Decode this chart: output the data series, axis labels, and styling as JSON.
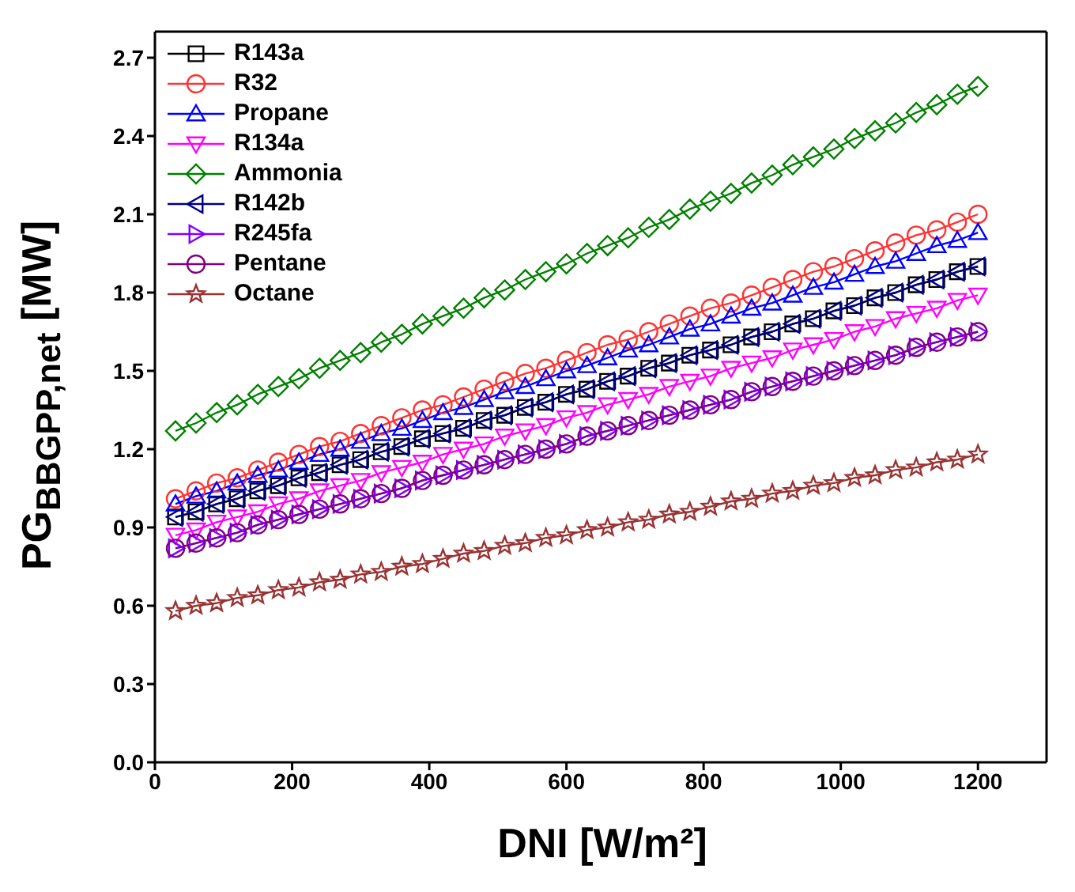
{
  "chart_data": {
    "type": "line",
    "xlabel": "DNI [W/m²]",
    "ylabel": "PG$_{BBGPP,net}$ [MW]",
    "x": [
      30,
      60,
      90,
      120,
      150,
      180,
      210,
      240,
      270,
      300,
      330,
      360,
      390,
      420,
      450,
      480,
      510,
      540,
      570,
      600,
      630,
      660,
      690,
      720,
      750,
      780,
      810,
      840,
      870,
      900,
      930,
      960,
      990,
      1020,
      1050,
      1080,
      1110,
      1140,
      1170,
      1200
    ],
    "xlim": [
      0,
      1300
    ],
    "xticks": [
      0,
      200,
      400,
      600,
      800,
      1000,
      1200
    ],
    "ylim": [
      0,
      2.8
    ],
    "yticks": [
      {
        "value": 0,
        "label": "0.0"
      },
      0.3,
      0.6,
      0.9,
      1.2,
      1.5,
      1.8,
      2.1,
      2.4,
      2.7
    ],
    "legend": "top left",
    "series": [
      {
        "name": "R143a",
        "color": "#000000",
        "marker": "square",
        "values": [
          0.94,
          0.96,
          0.99,
          1.01,
          1.04,
          1.06,
          1.09,
          1.11,
          1.14,
          1.16,
          1.19,
          1.21,
          1.24,
          1.26,
          1.28,
          1.31,
          1.33,
          1.36,
          1.38,
          1.41,
          1.43,
          1.46,
          1.48,
          1.51,
          1.53,
          1.56,
          1.58,
          1.6,
          1.63,
          1.65,
          1.68,
          1.7,
          1.73,
          1.75,
          1.78,
          1.8,
          1.83,
          1.85,
          1.88,
          1.9
        ]
      },
      {
        "name": "R32",
        "color": "#ff3333",
        "marker": "circle",
        "values": [
          1.01,
          1.04,
          1.07,
          1.09,
          1.12,
          1.15,
          1.18,
          1.21,
          1.23,
          1.26,
          1.29,
          1.32,
          1.35,
          1.37,
          1.4,
          1.43,
          1.46,
          1.49,
          1.51,
          1.54,
          1.57,
          1.6,
          1.62,
          1.65,
          1.68,
          1.71,
          1.74,
          1.76,
          1.79,
          1.82,
          1.85,
          1.88,
          1.9,
          1.93,
          1.96,
          1.99,
          2.02,
          2.04,
          2.07,
          2.1
        ]
      },
      {
        "name": "Propane",
        "color": "#0000ff",
        "marker": "triangle",
        "values": [
          0.99,
          1.02,
          1.04,
          1.07,
          1.1,
          1.12,
          1.15,
          1.18,
          1.2,
          1.23,
          1.26,
          1.28,
          1.31,
          1.34,
          1.36,
          1.39,
          1.42,
          1.44,
          1.47,
          1.5,
          1.52,
          1.55,
          1.58,
          1.6,
          1.63,
          1.66,
          1.68,
          1.71,
          1.74,
          1.76,
          1.79,
          1.82,
          1.84,
          1.87,
          1.9,
          1.92,
          1.95,
          1.98,
          2.0,
          2.03
        ]
      },
      {
        "name": "R134a",
        "color": "#ff00ff",
        "marker": "triangle-down",
        "values": [
          0.87,
          0.89,
          0.92,
          0.94,
          0.96,
          0.99,
          1.01,
          1.04,
          1.06,
          1.08,
          1.11,
          1.13,
          1.15,
          1.18,
          1.2,
          1.22,
          1.25,
          1.27,
          1.29,
          1.32,
          1.34,
          1.37,
          1.39,
          1.41,
          1.44,
          1.46,
          1.48,
          1.51,
          1.53,
          1.55,
          1.58,
          1.6,
          1.62,
          1.65,
          1.67,
          1.7,
          1.72,
          1.74,
          1.77,
          1.79
        ]
      },
      {
        "name": "Ammonia",
        "color": "#008000",
        "marker": "diamond",
        "values": [
          1.27,
          1.3,
          1.34,
          1.37,
          1.41,
          1.44,
          1.47,
          1.51,
          1.54,
          1.57,
          1.61,
          1.64,
          1.68,
          1.71,
          1.74,
          1.78,
          1.81,
          1.85,
          1.88,
          1.91,
          1.95,
          1.98,
          2.01,
          2.05,
          2.08,
          2.12,
          2.15,
          2.18,
          2.22,
          2.25,
          2.29,
          2.32,
          2.35,
          2.39,
          2.42,
          2.45,
          2.49,
          2.52,
          2.56,
          2.59
        ]
      },
      {
        "name": "R142b",
        "color": "#000080",
        "marker": "triangle-left",
        "values": [
          0.94,
          0.96,
          0.99,
          1.01,
          1.04,
          1.06,
          1.09,
          1.11,
          1.14,
          1.16,
          1.19,
          1.21,
          1.24,
          1.26,
          1.28,
          1.31,
          1.33,
          1.36,
          1.38,
          1.41,
          1.43,
          1.46,
          1.48,
          1.51,
          1.53,
          1.56,
          1.58,
          1.6,
          1.63,
          1.65,
          1.68,
          1.7,
          1.73,
          1.75,
          1.78,
          1.8,
          1.83,
          1.85,
          1.88,
          1.9
        ]
      },
      {
        "name": "R245fa",
        "color": "#8000ff",
        "marker": "triangle-right",
        "values": [
          0.82,
          0.84,
          0.86,
          0.88,
          0.91,
          0.93,
          0.95,
          0.97,
          0.99,
          1.01,
          1.03,
          1.05,
          1.08,
          1.1,
          1.12,
          1.14,
          1.16,
          1.18,
          1.2,
          1.22,
          1.25,
          1.27,
          1.29,
          1.31,
          1.33,
          1.35,
          1.37,
          1.39,
          1.42,
          1.44,
          1.46,
          1.48,
          1.5,
          1.52,
          1.54,
          1.56,
          1.59,
          1.61,
          1.63,
          1.65
        ]
      },
      {
        "name": "Pentane",
        "color": "#800080",
        "marker": "circle",
        "values": [
          0.82,
          0.84,
          0.86,
          0.88,
          0.91,
          0.93,
          0.95,
          0.97,
          0.99,
          1.01,
          1.03,
          1.05,
          1.08,
          1.1,
          1.12,
          1.14,
          1.16,
          1.18,
          1.2,
          1.22,
          1.25,
          1.27,
          1.29,
          1.31,
          1.33,
          1.35,
          1.37,
          1.39,
          1.42,
          1.44,
          1.46,
          1.48,
          1.5,
          1.52,
          1.54,
          1.56,
          1.59,
          1.61,
          1.63,
          1.65
        ]
      },
      {
        "name": "Octane",
        "color": "#993333",
        "marker": "star",
        "values": [
          0.58,
          0.6,
          0.61,
          0.63,
          0.64,
          0.66,
          0.67,
          0.69,
          0.7,
          0.72,
          0.73,
          0.75,
          0.76,
          0.78,
          0.8,
          0.81,
          0.83,
          0.84,
          0.86,
          0.87,
          0.89,
          0.9,
          0.92,
          0.93,
          0.95,
          0.96,
          0.98,
          1.0,
          1.01,
          1.03,
          1.04,
          1.06,
          1.07,
          1.09,
          1.1,
          1.12,
          1.13,
          1.15,
          1.16,
          1.18
        ]
      }
    ]
  }
}
